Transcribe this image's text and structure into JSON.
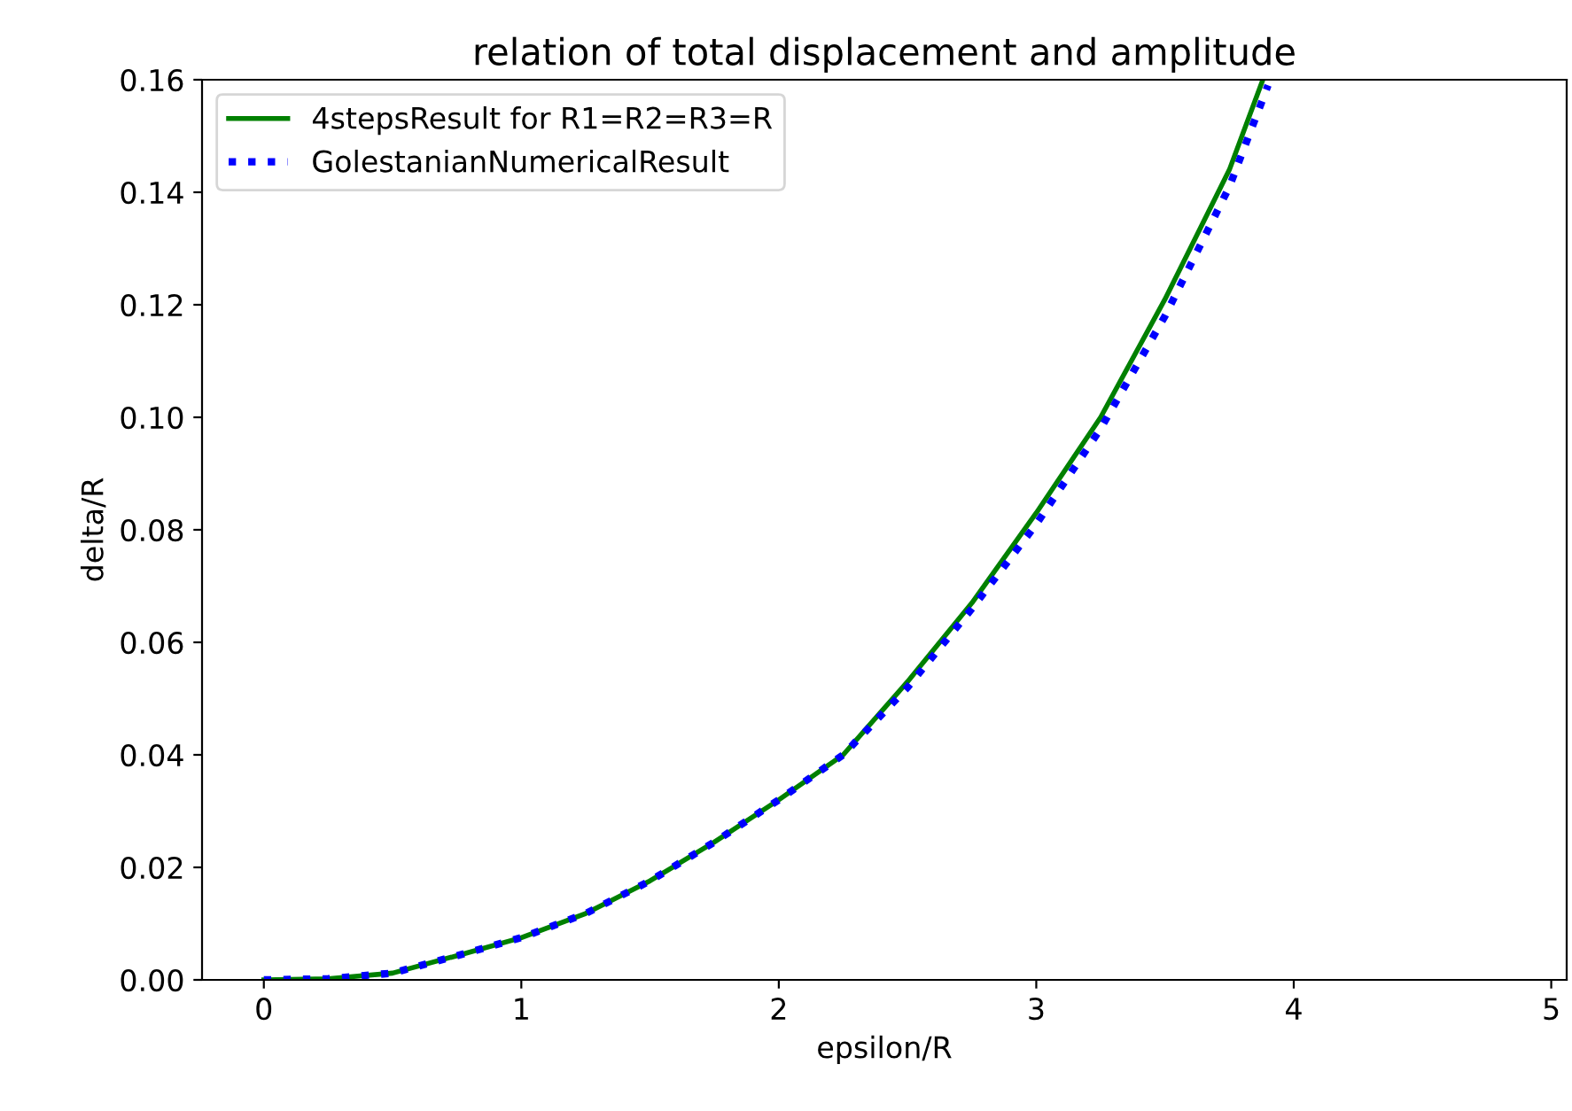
{
  "chart_data": {
    "type": "line",
    "title": "relation of total displacement and amplitude",
    "xlabel": "epsilon/R",
    "ylabel": "delta/R",
    "xlim": [
      -0.24,
      5.06
    ],
    "ylim": [
      0,
      0.16
    ],
    "xticks": [
      0,
      1,
      2,
      3,
      4,
      5
    ],
    "yticks": [
      {
        "value": 0,
        "label": "0.00"
      },
      {
        "value": 0.02,
        "label": "0.02"
      },
      {
        "value": 0.04,
        "label": "0.04"
      },
      {
        "value": 0.06,
        "label": "0.06"
      },
      {
        "value": 0.08,
        "label": "0.08"
      },
      {
        "value": 0.1,
        "label": "0.10"
      },
      {
        "value": 0.12,
        "label": "0.12"
      },
      {
        "value": 0.14,
        "label": "0.14"
      },
      {
        "value": 0.16,
        "label": "0.16"
      }
    ],
    "grid": false,
    "legend": "top left",
    "series": [
      {
        "name": "4stepsResult for R1=R2=R3=R",
        "color": "#008000",
        "line_style": "solid",
        "x": [
          0,
          0.25,
          0.5,
          0.75,
          1,
          1.25,
          1.5,
          1.75,
          2,
          2.25,
          2.5,
          2.75,
          3,
          3.25,
          3.5,
          3.75,
          3.88
        ],
        "values": [
          0,
          0.0002,
          0.0012,
          0.0043,
          0.0075,
          0.0118,
          0.0176,
          0.0245,
          0.032,
          0.04,
          0.053,
          0.067,
          0.083,
          0.1,
          0.121,
          0.144,
          0.16
        ]
      },
      {
        "name": "GolestanianNumericalResult",
        "color": "#0000ff",
        "line_style": "dotted",
        "x": [
          0,
          0.25,
          0.5,
          0.75,
          1,
          1.25,
          1.5,
          1.75,
          2,
          2.25,
          2.5,
          2.75,
          3,
          3.25,
          3.5,
          3.75,
          3.9
        ],
        "values": [
          0,
          0.0002,
          0.0012,
          0.0043,
          0.0075,
          0.0118,
          0.0176,
          0.0245,
          0.032,
          0.04,
          0.052,
          0.066,
          0.081,
          0.098,
          0.118,
          0.141,
          0.159
        ]
      }
    ]
  }
}
